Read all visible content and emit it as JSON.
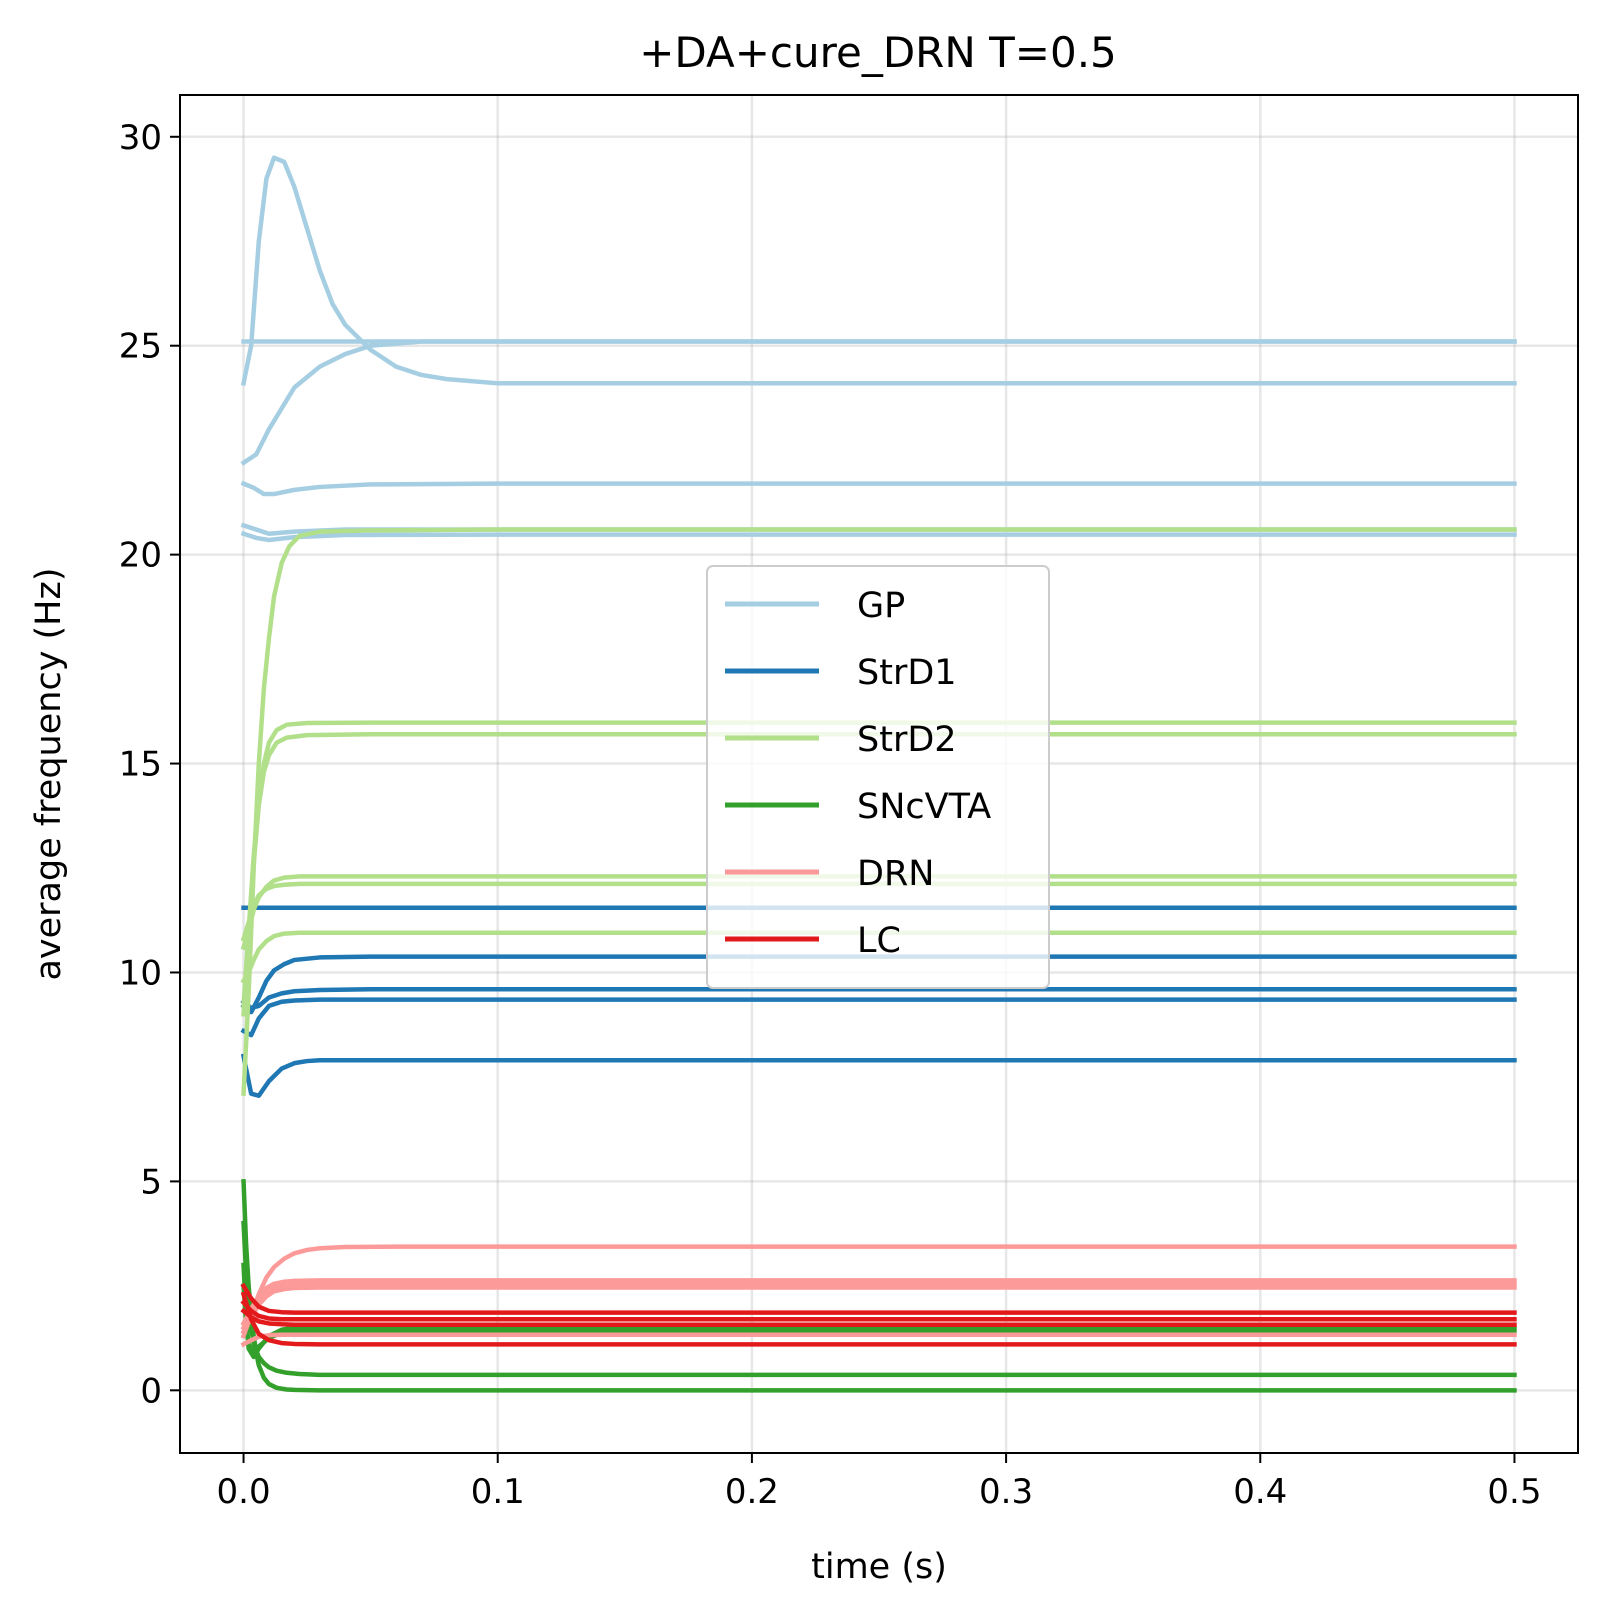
{
  "chart_data": {
    "type": "line",
    "title": "+DA+cure_DRN T=0.5",
    "xlabel": "time (s)",
    "ylabel": "average frequency (Hz)",
    "xlim": [
      -0.025,
      0.525
    ],
    "ylim": [
      -1.5,
      31.0
    ],
    "xticks": [
      0.0,
      0.1,
      0.2,
      0.3,
      0.4,
      0.5
    ],
    "xtick_labels": [
      "0.0",
      "0.1",
      "0.2",
      "0.3",
      "0.4",
      "0.5"
    ],
    "yticks": [
      0,
      5,
      10,
      15,
      20,
      25,
      30
    ],
    "ytick_labels": [
      "0",
      "5",
      "10",
      "15",
      "20",
      "25",
      "30"
    ],
    "grid": true,
    "legend_position": "center",
    "legend": [
      {
        "name": "GP",
        "color": "#a6cee3"
      },
      {
        "name": "StrD1",
        "color": "#1f78b4"
      },
      {
        "name": "StrD2",
        "color": "#b2df8a"
      },
      {
        "name": "SNcVTA",
        "color": "#33a02c"
      },
      {
        "name": "DRN",
        "color": "#fb9a99"
      },
      {
        "name": "LC",
        "color": "#e31a1c"
      }
    ],
    "series": [
      {
        "group": "GP",
        "color": "#a6cee3",
        "x": [
          0,
          0.003,
          0.006,
          0.009,
          0.012,
          0.016,
          0.02,
          0.025,
          0.03,
          0.035,
          0.04,
          0.05,
          0.06,
          0.07,
          0.08,
          0.1,
          0.15,
          0.2,
          0.5
        ],
        "y": [
          24.1,
          25.0,
          27.5,
          29.0,
          29.5,
          29.4,
          28.8,
          27.8,
          26.8,
          26.0,
          25.5,
          24.9,
          24.5,
          24.3,
          24.2,
          24.1,
          24.1,
          24.1,
          24.1
        ]
      },
      {
        "group": "GP",
        "color": "#a6cee3",
        "x": [
          0,
          0.005,
          0.01,
          0.015,
          0.02,
          0.03,
          0.04,
          0.05,
          0.07,
          0.1,
          0.5
        ],
        "y": [
          25.1,
          25.1,
          25.1,
          25.1,
          25.1,
          25.1,
          25.1,
          25.1,
          25.1,
          25.1,
          25.1
        ]
      },
      {
        "group": "GP",
        "color": "#a6cee3",
        "x": [
          0,
          0.005,
          0.01,
          0.015,
          0.02,
          0.03,
          0.04,
          0.05,
          0.07,
          0.1,
          0.5
        ],
        "y": [
          22.2,
          22.4,
          23.0,
          23.5,
          24.0,
          24.5,
          24.8,
          25.0,
          25.1,
          25.1,
          25.1
        ]
      },
      {
        "group": "GP",
        "color": "#a6cee3",
        "x": [
          0,
          0.004,
          0.008,
          0.012,
          0.02,
          0.03,
          0.05,
          0.1,
          0.5
        ],
        "y": [
          21.7,
          21.6,
          21.45,
          21.45,
          21.55,
          21.62,
          21.68,
          21.7,
          21.7
        ]
      },
      {
        "group": "GP",
        "color": "#a6cee3",
        "x": [
          0,
          0.005,
          0.01,
          0.02,
          0.04,
          0.1,
          0.5
        ],
        "y": [
          20.7,
          20.6,
          20.5,
          20.55,
          20.6,
          20.6,
          20.6
        ]
      },
      {
        "group": "GP",
        "color": "#a6cee3",
        "x": [
          0,
          0.005,
          0.01,
          0.02,
          0.04,
          0.1,
          0.5
        ],
        "y": [
          20.5,
          20.4,
          20.35,
          20.42,
          20.47,
          20.48,
          20.48
        ]
      },
      {
        "group": "StrD1",
        "color": "#1f78b4",
        "x": [
          0,
          0.5
        ],
        "y": [
          11.55,
          11.55
        ]
      },
      {
        "group": "StrD1",
        "color": "#1f78b4",
        "x": [
          0,
          0.003,
          0.006,
          0.009,
          0.012,
          0.016,
          0.02,
          0.03,
          0.05,
          0.1,
          0.5
        ],
        "y": [
          9.2,
          9.05,
          9.4,
          9.8,
          10.05,
          10.2,
          10.3,
          10.36,
          10.38,
          10.38,
          10.38
        ]
      },
      {
        "group": "StrD1",
        "color": "#1f78b4",
        "x": [
          0,
          0.003,
          0.006,
          0.01,
          0.015,
          0.02,
          0.03,
          0.05,
          0.1,
          0.5
        ],
        "y": [
          9.3,
          9.15,
          9.2,
          9.4,
          9.5,
          9.55,
          9.58,
          9.6,
          9.6,
          9.6
        ]
      },
      {
        "group": "StrD1",
        "color": "#1f78b4",
        "x": [
          0,
          0.003,
          0.006,
          0.01,
          0.015,
          0.02,
          0.03,
          0.05,
          0.1,
          0.5
        ],
        "y": [
          8.6,
          8.5,
          8.9,
          9.2,
          9.3,
          9.33,
          9.35,
          9.35,
          9.35,
          9.35
        ]
      },
      {
        "group": "StrD1",
        "color": "#1f78b4",
        "x": [
          0,
          0.003,
          0.006,
          0.01,
          0.015,
          0.02,
          0.025,
          0.03,
          0.05,
          0.1,
          0.5
        ],
        "y": [
          8.0,
          7.1,
          7.05,
          7.4,
          7.7,
          7.83,
          7.88,
          7.9,
          7.9,
          7.9,
          7.9
        ]
      },
      {
        "group": "StrD2",
        "color": "#b2df8a",
        "x": [
          0,
          0.002,
          0.004,
          0.006,
          0.008,
          0.01,
          0.012,
          0.015,
          0.018,
          0.022,
          0.03,
          0.05,
          0.1,
          0.5
        ],
        "y": [
          7.1,
          9.5,
          12.5,
          15.0,
          16.8,
          18.0,
          19.0,
          19.8,
          20.2,
          20.45,
          20.55,
          20.58,
          20.6,
          20.6
        ]
      },
      {
        "group": "StrD2",
        "color": "#b2df8a",
        "x": [
          0,
          0.002,
          0.004,
          0.006,
          0.008,
          0.01,
          0.013,
          0.017,
          0.025,
          0.05,
          0.5
        ],
        "y": [
          9.2,
          11.0,
          12.8,
          14.2,
          15.0,
          15.5,
          15.8,
          15.93,
          15.97,
          15.98,
          15.98
        ]
      },
      {
        "group": "StrD2",
        "color": "#b2df8a",
        "x": [
          0,
          0.002,
          0.004,
          0.006,
          0.008,
          0.01,
          0.013,
          0.017,
          0.025,
          0.05,
          0.5
        ],
        "y": [
          9.0,
          10.8,
          12.6,
          14.0,
          14.8,
          15.2,
          15.5,
          15.62,
          15.68,
          15.7,
          15.7
        ]
      },
      {
        "group": "StrD2",
        "color": "#b2df8a",
        "x": [
          0,
          0.002,
          0.004,
          0.006,
          0.009,
          0.012,
          0.016,
          0.022,
          0.03,
          0.05,
          0.5
        ],
        "y": [
          10.6,
          11.0,
          11.5,
          11.8,
          12.05,
          12.2,
          12.27,
          12.3,
          12.3,
          12.3,
          12.3
        ]
      },
      {
        "group": "StrD2",
        "color": "#b2df8a",
        "x": [
          0,
          0.002,
          0.004,
          0.006,
          0.009,
          0.012,
          0.016,
          0.022,
          0.03,
          0.05,
          0.5
        ],
        "y": [
          10.8,
          11.2,
          11.6,
          11.85,
          12.0,
          12.07,
          12.1,
          12.12,
          12.12,
          12.12,
          12.12
        ]
      },
      {
        "group": "StrD2",
        "color": "#b2df8a",
        "x": [
          0,
          0.002,
          0.004,
          0.006,
          0.009,
          0.012,
          0.016,
          0.022,
          0.03,
          0.05,
          0.5
        ],
        "y": [
          9.8,
          10.0,
          10.3,
          10.55,
          10.75,
          10.87,
          10.93,
          10.95,
          10.95,
          10.95,
          10.95
        ]
      },
      {
        "group": "SNcVTA",
        "color": "#33a02c",
        "x": [
          0,
          0.001,
          0.002,
          0.003,
          0.004,
          0.005,
          0.006,
          0.008,
          0.01,
          0.013,
          0.017,
          0.02,
          0.03,
          0.1,
          0.5
        ],
        "y": [
          5.0,
          3.5,
          2.5,
          1.8,
          1.3,
          0.9,
          0.6,
          0.3,
          0.15,
          0.06,
          0.02,
          0.01,
          0.0,
          0.0,
          0.0
        ]
      },
      {
        "group": "SNcVTA",
        "color": "#33a02c",
        "x": [
          0,
          0.001,
          0.002,
          0.003,
          0.004,
          0.006,
          0.008,
          0.01,
          0.013,
          0.017,
          0.022,
          0.03,
          0.05,
          0.5
        ],
        "y": [
          4.0,
          2.8,
          2.0,
          1.5,
          1.1,
          0.8,
          0.65,
          0.55,
          0.47,
          0.42,
          0.39,
          0.37,
          0.37,
          0.37
        ]
      },
      {
        "group": "SNcVTA",
        "color": "#33a02c",
        "x": [
          0,
          0.001,
          0.002,
          0.004,
          0.006,
          0.01,
          0.015,
          0.02,
          0.05,
          0.5
        ],
        "y": [
          3.0,
          1.8,
          1.0,
          0.8,
          1.0,
          1.3,
          1.45,
          1.5,
          1.5,
          1.5
        ]
      },
      {
        "group": "SNcVTA",
        "color": "#33a02c",
        "x": [
          0,
          0.001,
          0.002,
          0.004,
          0.006,
          0.01,
          0.015,
          0.02,
          0.05,
          0.5
        ],
        "y": [
          2.5,
          1.6,
          1.1,
          0.9,
          1.05,
          1.25,
          1.38,
          1.42,
          1.42,
          1.42
        ]
      },
      {
        "group": "DRN",
        "color": "#fb9a99",
        "x": [
          0,
          0.003,
          0.006,
          0.009,
          0.012,
          0.016,
          0.02,
          0.025,
          0.03,
          0.04,
          0.06,
          0.1,
          0.5
        ],
        "y": [
          1.3,
          1.8,
          2.3,
          2.7,
          2.95,
          3.15,
          3.28,
          3.36,
          3.4,
          3.43,
          3.44,
          3.44,
          3.44
        ]
      },
      {
        "group": "DRN",
        "color": "#fb9a99",
        "x": [
          0,
          0.003,
          0.006,
          0.009,
          0.012,
          0.016,
          0.02,
          0.03,
          0.05,
          0.1,
          0.5
        ],
        "y": [
          1.6,
          1.95,
          2.25,
          2.45,
          2.55,
          2.6,
          2.62,
          2.63,
          2.63,
          2.63,
          2.63
        ]
      },
      {
        "group": "DRN",
        "color": "#fb9a99",
        "x": [
          0,
          0.003,
          0.006,
          0.009,
          0.012,
          0.016,
          0.02,
          0.03,
          0.05,
          0.1,
          0.5
        ],
        "y": [
          1.5,
          1.85,
          2.15,
          2.35,
          2.45,
          2.5,
          2.52,
          2.53,
          2.53,
          2.53,
          2.53
        ]
      },
      {
        "group": "DRN",
        "color": "#fb9a99",
        "x": [
          0,
          0.003,
          0.006,
          0.009,
          0.012,
          0.016,
          0.02,
          0.03,
          0.05,
          0.1,
          0.5
        ],
        "y": [
          1.4,
          1.75,
          2.05,
          2.25,
          2.37,
          2.42,
          2.45,
          2.46,
          2.46,
          2.46,
          2.46
        ]
      },
      {
        "group": "DRN",
        "color": "#fb9a99",
        "x": [
          0,
          0.003,
          0.006,
          0.01,
          0.015,
          0.02,
          0.05,
          0.5
        ],
        "y": [
          1.1,
          1.2,
          1.28,
          1.32,
          1.33,
          1.33,
          1.33,
          1.33
        ]
      },
      {
        "group": "LC",
        "color": "#e31a1c",
        "x": [
          0,
          0.003,
          0.006,
          0.01,
          0.015,
          0.02,
          0.03,
          0.05,
          0.5
        ],
        "y": [
          2.5,
          2.2,
          2.0,
          1.9,
          1.87,
          1.86,
          1.86,
          1.86,
          1.86
        ]
      },
      {
        "group": "LC",
        "color": "#e31a1c",
        "x": [
          0,
          0.003,
          0.006,
          0.01,
          0.015,
          0.02,
          0.03,
          0.05,
          0.5
        ],
        "y": [
          2.1,
          1.9,
          1.78,
          1.72,
          1.7,
          1.7,
          1.7,
          1.7,
          1.7
        ]
      },
      {
        "group": "LC",
        "color": "#e31a1c",
        "x": [
          0,
          0.003,
          0.006,
          0.01,
          0.015,
          0.02,
          0.03,
          0.05,
          0.5
        ],
        "y": [
          1.9,
          1.75,
          1.65,
          1.6,
          1.58,
          1.57,
          1.57,
          1.57,
          1.57
        ]
      },
      {
        "group": "LC",
        "color": "#e31a1c",
        "x": [
          0,
          0.003,
          0.006,
          0.01,
          0.015,
          0.02,
          0.03,
          0.05,
          0.5
        ],
        "y": [
          2.3,
          1.7,
          1.35,
          1.2,
          1.13,
          1.11,
          1.1,
          1.1,
          1.1
        ]
      }
    ]
  }
}
